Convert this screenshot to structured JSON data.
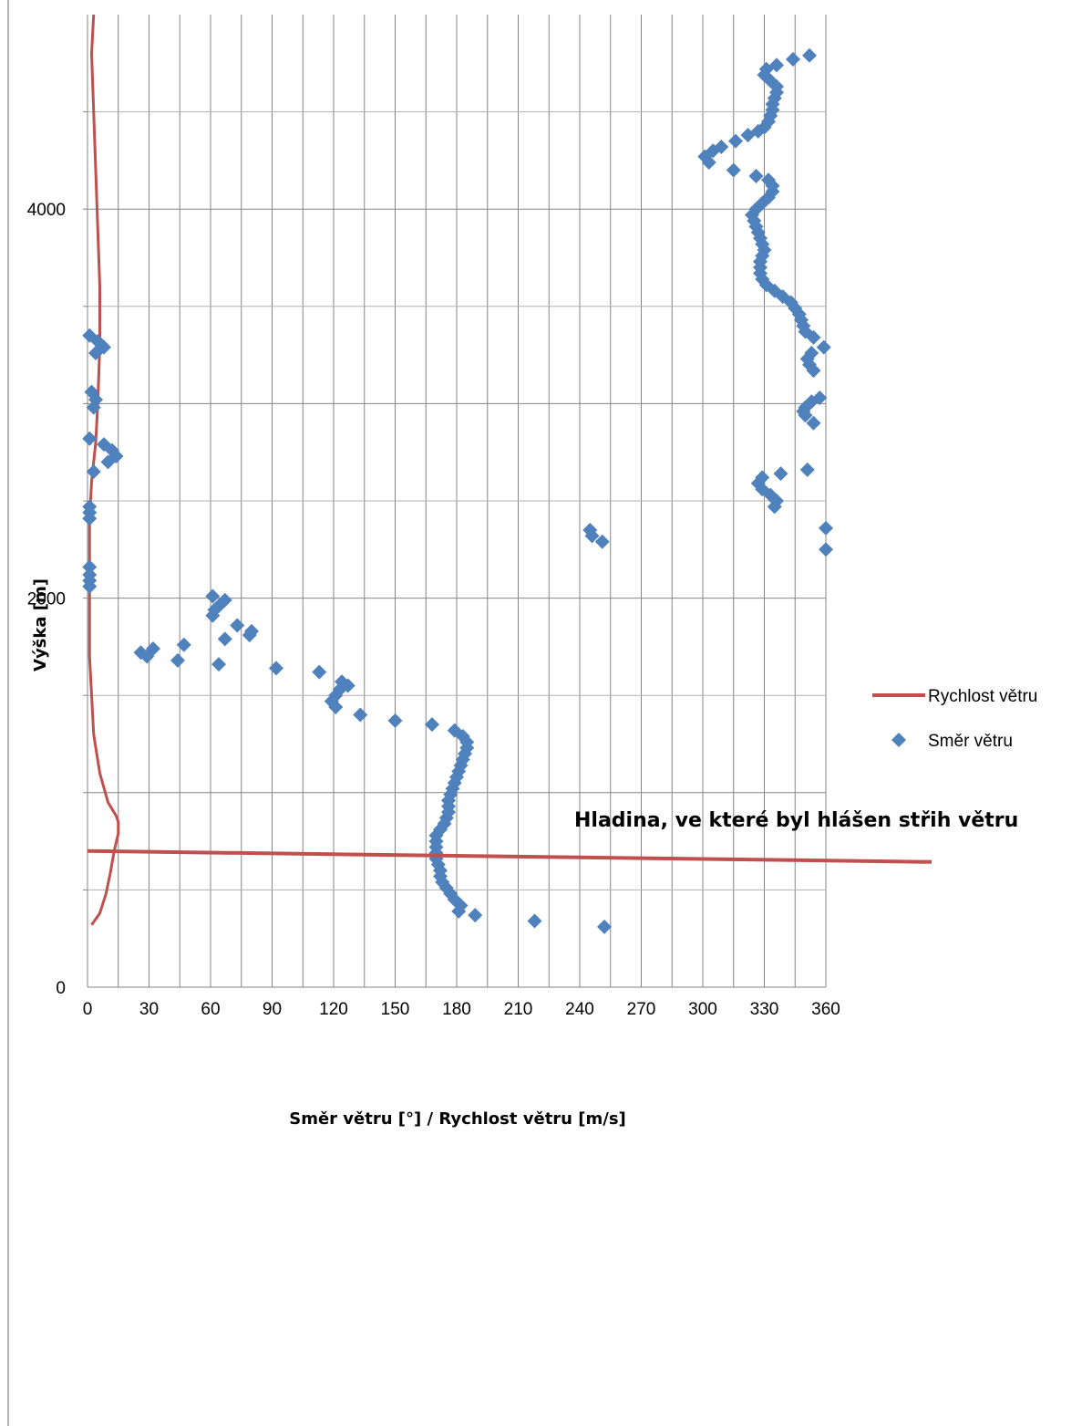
{
  "chart_data": {
    "type": "scatter",
    "xlabel": "Směr větru [°] / Rychlost větru [m/s]",
    "ylabel": "Výška [m]",
    "xlim": [
      0,
      360
    ],
    "ylim": [
      0,
      5000
    ],
    "x_ticks": [
      "0",
      "30",
      "60",
      "90",
      "120",
      "150",
      "180",
      "210",
      "240",
      "270",
      "300",
      "330",
      "360"
    ],
    "y_ticks": [
      "0",
      "2000",
      "4000"
    ],
    "grid": "major and minor gridlines",
    "legend_position": "right",
    "colors": {
      "speed": "#C0504D",
      "direction": "#4F81BD",
      "grid": "#868686"
    },
    "series": [
      {
        "name": "Rychlost větru",
        "type": "line",
        "points": [
          [
            2,
            320
          ],
          [
            6,
            380
          ],
          [
            9,
            480
          ],
          [
            11,
            580
          ],
          [
            13,
            700
          ],
          [
            15,
            790
          ],
          [
            15,
            850
          ],
          [
            14,
            880
          ],
          [
            10,
            950
          ],
          [
            6,
            1100
          ],
          [
            3,
            1300
          ],
          [
            2,
            1500
          ],
          [
            1,
            1700
          ],
          [
            1,
            2000
          ],
          [
            1,
            2200
          ],
          [
            1,
            2400
          ],
          [
            2,
            2600
          ],
          [
            4,
            2800
          ],
          [
            5,
            3000
          ],
          [
            6,
            3300
          ],
          [
            6,
            3600
          ],
          [
            5,
            3900
          ],
          [
            4,
            4200
          ],
          [
            3,
            4500
          ],
          [
            2,
            4800
          ],
          [
            3,
            5000
          ]
        ]
      },
      {
        "name": "Směr větru",
        "type": "scatter",
        "points": [
          [
            252,
            310
          ],
          [
            218,
            340
          ],
          [
            189,
            370
          ],
          [
            181,
            390
          ],
          [
            182,
            420
          ],
          [
            179,
            450
          ],
          [
            177,
            480
          ],
          [
            175,
            510
          ],
          [
            173,
            540
          ],
          [
            172,
            570
          ],
          [
            172,
            600
          ],
          [
            171,
            630
          ],
          [
            170,
            660
          ],
          [
            170,
            690
          ],
          [
            170,
            720
          ],
          [
            170,
            750
          ],
          [
            170,
            780
          ],
          [
            172,
            810
          ],
          [
            174,
            840
          ],
          [
            175,
            870
          ],
          [
            176,
            900
          ],
          [
            176,
            930
          ],
          [
            176,
            960
          ],
          [
            177,
            990
          ],
          [
            178,
            1020
          ],
          [
            179,
            1050
          ],
          [
            180,
            1080
          ],
          [
            181,
            1110
          ],
          [
            182,
            1140
          ],
          [
            183,
            1170
          ],
          [
            184,
            1200
          ],
          [
            185,
            1230
          ],
          [
            185,
            1260
          ],
          [
            183,
            1290
          ],
          [
            179,
            1320
          ],
          [
            168,
            1350
          ],
          [
            150,
            1370
          ],
          [
            133,
            1400
          ],
          [
            121,
            1440
          ],
          [
            119,
            1470
          ],
          [
            121,
            1500
          ],
          [
            123,
            1530
          ],
          [
            127,
            1550
          ],
          [
            124,
            1570
          ],
          [
            113,
            1620
          ],
          [
            92,
            1640
          ],
          [
            64,
            1660
          ],
          [
            44,
            1680
          ],
          [
            29,
            1700
          ],
          [
            26,
            1720
          ],
          [
            32,
            1740
          ],
          [
            47,
            1760
          ],
          [
            67,
            1790
          ],
          [
            79,
            1810
          ],
          [
            80,
            1830
          ],
          [
            73,
            1860
          ],
          [
            61,
            1910
          ],
          [
            62,
            1940
          ],
          [
            64,
            1960
          ],
          [
            67,
            1990
          ],
          [
            61,
            2010
          ],
          [
            1,
            2060
          ],
          [
            1,
            2090
          ],
          [
            1,
            2120
          ],
          [
            1,
            2160
          ],
          [
            1,
            2410
          ],
          [
            1,
            2440
          ],
          [
            1,
            2470
          ],
          [
            246,
            2320
          ],
          [
            245,
            2350
          ],
          [
            251,
            2290
          ],
          [
            360,
            2250
          ],
          [
            360,
            2360
          ],
          [
            335,
            2470
          ],
          [
            336,
            2500
          ],
          [
            333,
            2530
          ],
          [
            329,
            2560
          ],
          [
            327,
            2590
          ],
          [
            329,
            2620
          ],
          [
            338,
            2640
          ],
          [
            351,
            2660
          ],
          [
            3,
            2650
          ],
          [
            10,
            2700
          ],
          [
            14,
            2730
          ],
          [
            12,
            2760
          ],
          [
            8,
            2790
          ],
          [
            1,
            2820
          ],
          [
            354,
            2900
          ],
          [
            350,
            2940
          ],
          [
            349,
            2960
          ],
          [
            350,
            2980
          ],
          [
            353,
            3010
          ],
          [
            357,
            3030
          ],
          [
            3,
            2980
          ],
          [
            4,
            3020
          ],
          [
            2,
            3060
          ],
          [
            354,
            3170
          ],
          [
            352,
            3200
          ],
          [
            351,
            3230
          ],
          [
            353,
            3260
          ],
          [
            359,
            3290
          ],
          [
            4,
            3260
          ],
          [
            8,
            3290
          ],
          [
            5,
            3320
          ],
          [
            1,
            3350
          ],
          [
            354,
            3340
          ],
          [
            350,
            3370
          ],
          [
            349,
            3400
          ],
          [
            348,
            3430
          ],
          [
            347,
            3460
          ],
          [
            345,
            3490
          ],
          [
            343,
            3520
          ],
          [
            339,
            3550
          ],
          [
            335,
            3580
          ],
          [
            331,
            3610
          ],
          [
            329,
            3640
          ],
          [
            328,
            3670
          ],
          [
            328,
            3700
          ],
          [
            328,
            3730
          ],
          [
            329,
            3760
          ],
          [
            330,
            3790
          ],
          [
            329,
            3820
          ],
          [
            328,
            3850
          ],
          [
            327,
            3880
          ],
          [
            326,
            3910
          ],
          [
            325,
            3940
          ],
          [
            324,
            3970
          ],
          [
            326,
            4000
          ],
          [
            329,
            4030
          ],
          [
            332,
            4060
          ],
          [
            334,
            4090
          ],
          [
            334,
            4120
          ],
          [
            332,
            4150
          ],
          [
            326,
            4170
          ],
          [
            315,
            4200
          ],
          [
            303,
            4240
          ],
          [
            301,
            4270
          ],
          [
            305,
            4300
          ],
          [
            309,
            4320
          ],
          [
            316,
            4350
          ],
          [
            322,
            4380
          ],
          [
            327,
            4400
          ],
          [
            330,
            4420
          ],
          [
            332,
            4450
          ],
          [
            333,
            4480
          ],
          [
            334,
            4510
          ],
          [
            334,
            4540
          ],
          [
            335,
            4570
          ],
          [
            336,
            4600
          ],
          [
            336,
            4630
          ],
          [
            333,
            4660
          ],
          [
            330,
            4690
          ],
          [
            331,
            4720
          ],
          [
            336,
            4740
          ],
          [
            344,
            4770
          ],
          [
            352,
            4790
          ]
        ]
      }
    ],
    "annotations": [
      {
        "text": "Hladina, ve které byl hlášen střih větru",
        "height": 700
      }
    ]
  }
}
